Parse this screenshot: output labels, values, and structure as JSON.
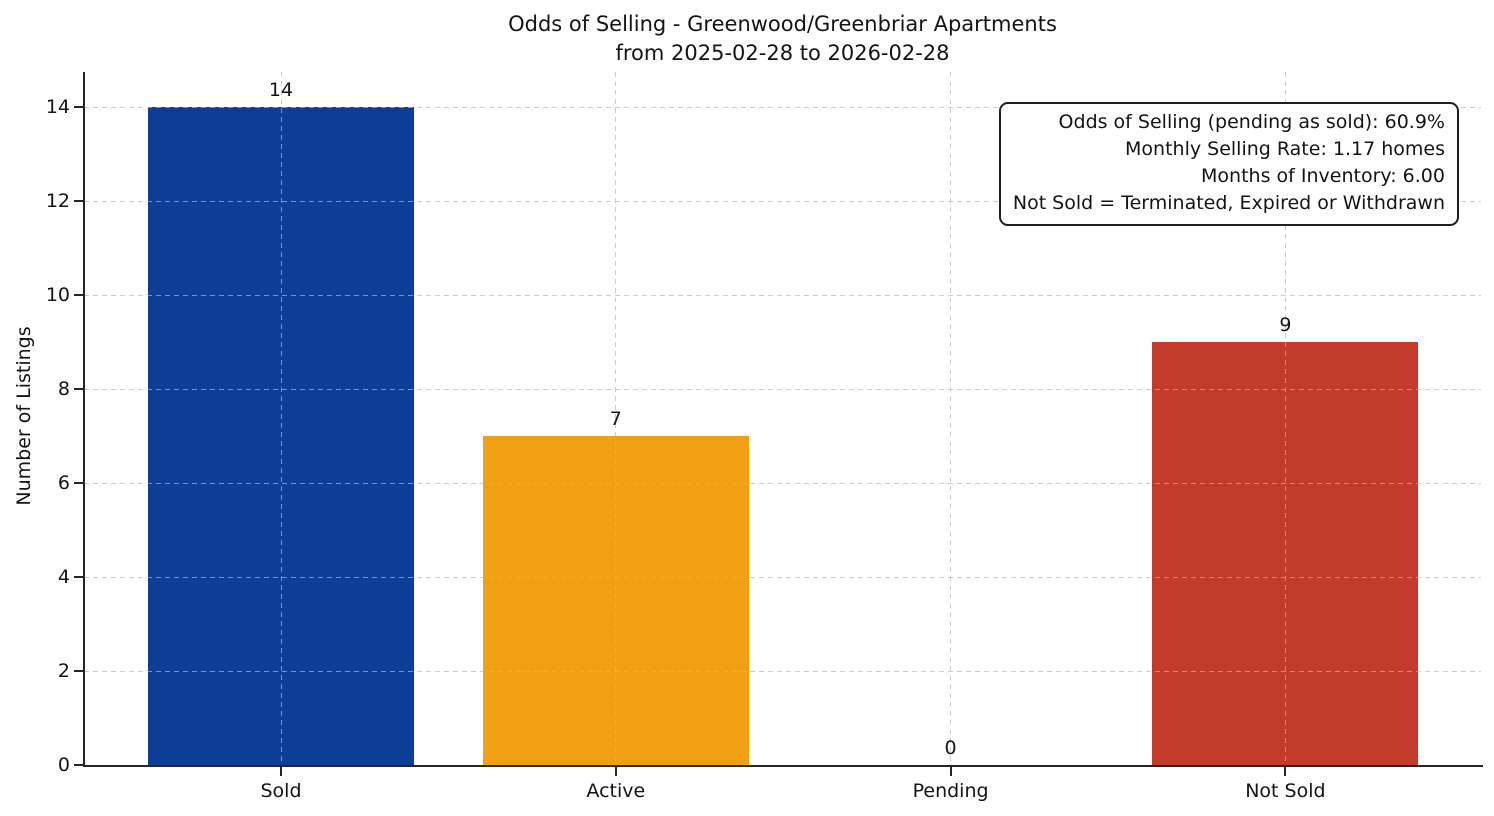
{
  "chart_data": {
    "type": "bar",
    "title": "Odds of Selling - Greenwood/Greenbriar Apartments\nfrom 2025-02-28 to 2026-02-28",
    "ylabel": "Number of Listings",
    "xlabel": "",
    "categories": [
      "Sold",
      "Active",
      "Pending",
      "Not Sold"
    ],
    "values": [
      14,
      7,
      0,
      9
    ],
    "bar_colors": [
      "#0d3d94",
      "#f2a013",
      null,
      "#c23b2b"
    ],
    "yticks": [
      0,
      2,
      4,
      6,
      8,
      10,
      12,
      14
    ],
    "ylim": [
      0,
      14.75
    ],
    "grid": true,
    "grid_style": "dashed",
    "legend_position": "none"
  },
  "annotation": {
    "lines": [
      "Odds of Selling (pending as sold): 60.9%",
      "Monthly Selling Rate: 1.17 homes",
      "Months of Inventory: 6.00",
      "Not Sold = Terminated, Expired or Withdrawn"
    ]
  }
}
